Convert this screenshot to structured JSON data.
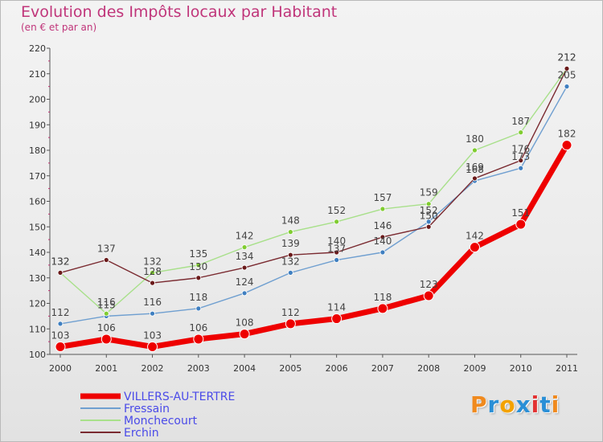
{
  "chart_data": {
    "type": "line",
    "title": "Evolution des Impôts locaux par Habitant",
    "subtitle": "(en € et par an)",
    "categories": [
      "2000",
      "2001",
      "2002",
      "2003",
      "2004",
      "2005",
      "2006",
      "2007",
      "2008",
      "2009",
      "2010",
      "2011"
    ],
    "ylim": [
      100,
      220
    ],
    "yticks": [
      100,
      110,
      120,
      130,
      140,
      150,
      160,
      170,
      180,
      190,
      200,
      210,
      220
    ],
    "grid": false,
    "legend_position": "bottom-left",
    "series": [
      {
        "name": "Fressain",
        "color": "#6f9fd0",
        "marker": "#3f7fc0",
        "width": 1.4,
        "marker_r": 3,
        "values": [
          112,
          115,
          116,
          118,
          124,
          132,
          137,
          140,
          152,
          168,
          173,
          205
        ],
        "labels": [
          "112",
          "115",
          "116",
          "118",
          "124",
          "132",
          "137",
          "140",
          "152",
          "168",
          "173",
          "205"
        ]
      },
      {
        "name": "Monchecourt",
        "color": "#a8e08a",
        "marker": "#80cc30",
        "width": 1.4,
        "marker_r": 3,
        "values": [
          132,
          116,
          132,
          135,
          142,
          148,
          152,
          157,
          159,
          180,
          187,
          212
        ],
        "labels": [
          "132",
          "116",
          "132",
          "135",
          "142",
          "148",
          "152",
          "157",
          "159",
          "180",
          "187",
          "212"
        ]
      },
      {
        "name": "Erchin",
        "color": "#7a2a30",
        "marker": "#6a1a1a",
        "width": 1.4,
        "marker_r": 3,
        "values": [
          132,
          137,
          128,
          130,
          134,
          139,
          140,
          146,
          150,
          169,
          176,
          212
        ],
        "labels": [
          "132",
          "137",
          "128",
          "130",
          "134",
          "139",
          "140",
          "146",
          "150",
          "169",
          "176",
          "212"
        ]
      },
      {
        "name": "VILLERS-AU-TERTRE",
        "color": "#ee0000",
        "marker": "#ee0000",
        "width": 7,
        "marker_r": 6,
        "values": [
          103,
          106,
          103,
          106,
          108,
          112,
          114,
          118,
          123,
          142,
          151,
          182
        ],
        "labels": [
          "103",
          "106",
          "103",
          "106",
          "108",
          "112",
          "114",
          "118",
          "123",
          "142",
          "151",
          "182"
        ]
      }
    ],
    "legend_order": [
      "VILLERS-AU-TERTRE",
      "Fressain",
      "Monchecourt",
      "Erchin"
    ]
  },
  "logo": {
    "letters": [
      "P",
      "r",
      "o",
      "x",
      "i",
      "t",
      "i"
    ],
    "colors": [
      "#f08a1e",
      "#2a8fd6",
      "#f3a200",
      "#2a8fd6",
      "#e33232",
      "#2a8fd6",
      "#f08a1e"
    ]
  }
}
